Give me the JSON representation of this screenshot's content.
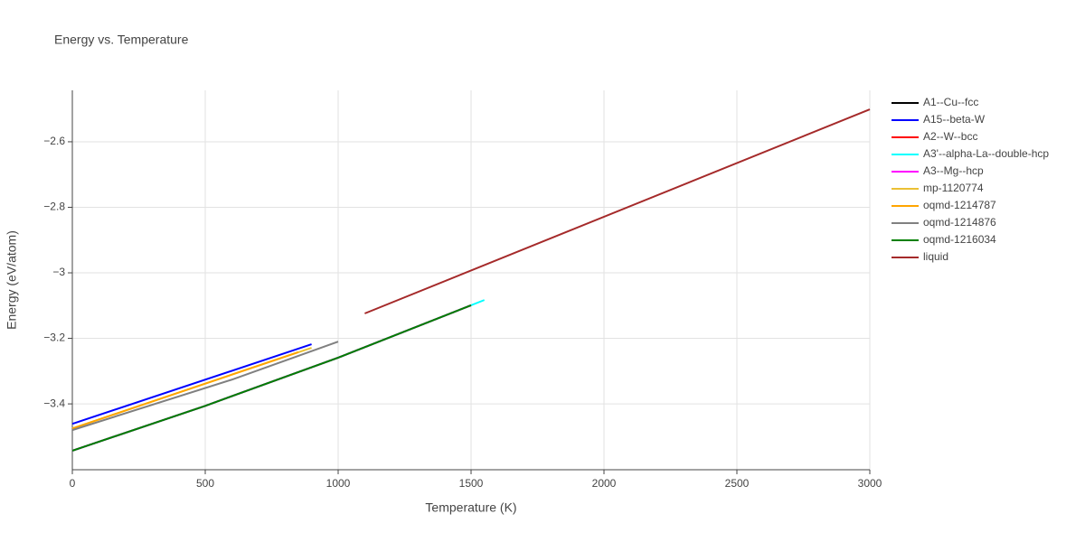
{
  "chart_data": {
    "type": "line",
    "title": "Energy vs. Temperature",
    "x_label": "Temperature (K)",
    "y_label": "Energy (eV/atom)",
    "xlim": [
      0,
      3000
    ],
    "xticks": [
      0,
      500,
      1000,
      1500,
      2000,
      2500,
      3000
    ],
    "ylim": [
      -3.601,
      -2.443
    ],
    "yticks": [
      {
        "value": -3.4,
        "label": "−3.4"
      },
      {
        "value": -3.2,
        "label": "−3.2"
      },
      {
        "value": -3,
        "label": "−3"
      },
      {
        "value": -2.8,
        "label": "−2.8"
      },
      {
        "value": -2.6,
        "label": "−2.6"
      }
    ],
    "grid": true,
    "legend": "right",
    "series": [
      {
        "name": "A1--Cu--fcc",
        "color": "#000000",
        "x": [
          0,
          500,
          1000,
          1500
        ],
        "values": [
          -3.543,
          -3.406,
          -3.259,
          -3.099
        ]
      },
      {
        "name": "A15--beta-W",
        "color": "#0000ff",
        "x": [
          0,
          900
        ],
        "values": [
          -3.461,
          -3.218
        ]
      },
      {
        "name": "A2--W--bcc",
        "color": "#ff0000",
        "x": [
          0,
          500,
          1000,
          1500
        ],
        "values": [
          -3.543,
          -3.406,
          -3.259,
          -3.099
        ]
      },
      {
        "name": "A3'--alpha-La--double-hcp",
        "color": "#00ffff",
        "x": [
          0,
          500,
          1000,
          1550
        ],
        "values": [
          -3.543,
          -3.406,
          -3.259,
          -3.083
        ]
      },
      {
        "name": "A3--Mg--hcp",
        "color": "#ff00ff",
        "x": [
          0,
          500,
          1000,
          1500
        ],
        "values": [
          -3.543,
          -3.406,
          -3.259,
          -3.099
        ]
      },
      {
        "name": "mp-1120774",
        "color": "#ebc034",
        "x": [
          0,
          900
        ],
        "values": [
          -3.475,
          -3.229
        ]
      },
      {
        "name": "oqmd-1214787",
        "color": "#ffa500",
        "x": [
          0,
          850
        ],
        "values": [
          -3.475,
          -3.242
        ]
      },
      {
        "name": "oqmd-1214876",
        "color": "#808080",
        "x": [
          0,
          600,
          1000
        ],
        "values": [
          -3.48,
          -3.326,
          -3.21
        ]
      },
      {
        "name": "oqmd-1216034",
        "color": "#008000",
        "x": [
          0,
          500,
          1000,
          1500
        ],
        "values": [
          -3.543,
          -3.406,
          -3.259,
          -3.099
        ]
      },
      {
        "name": "liquid",
        "color": "#a52a2a",
        "x": [
          1100,
          3000
        ],
        "values": [
          -3.124,
          -2.501
        ]
      }
    ]
  }
}
